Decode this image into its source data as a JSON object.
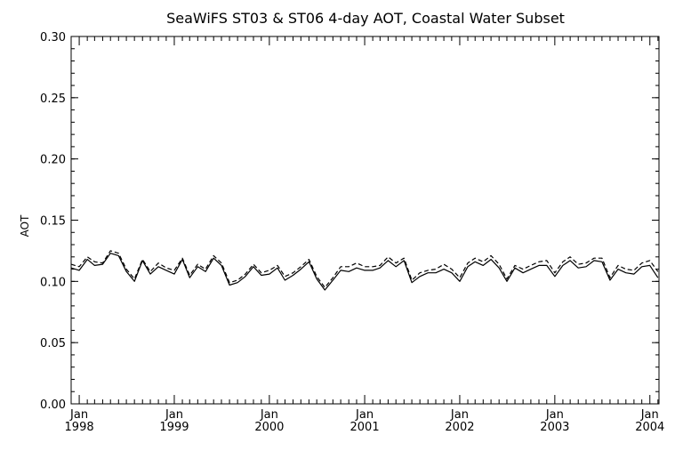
{
  "chart_data": {
    "type": "line",
    "title": "SeaWiFS ST03 & ST06 4-day AOT, Coastal Water Subset",
    "xlabel": "",
    "ylabel": "AOT",
    "ylim": [
      0.0,
      0.3
    ],
    "xlim": [
      "1997-12-01",
      "2004-02-05"
    ],
    "y_ticks": [
      "0.00",
      "0.05",
      "0.10",
      "0.15",
      "0.20",
      "0.25",
      "0.30"
    ],
    "x_ticks": [
      {
        "month": "Jan",
        "year": "1998"
      },
      {
        "month": "Jan",
        "year": "1999"
      },
      {
        "month": "Jan",
        "year": "2000"
      },
      {
        "month": "Jan",
        "year": "2001"
      },
      {
        "month": "Jan",
        "year": "2002"
      },
      {
        "month": "Jan",
        "year": "2003"
      },
      {
        "month": "Jan",
        "year": "2004"
      }
    ],
    "grid": false,
    "legend": "none",
    "series": [
      {
        "style": "solid",
        "color": "#000000",
        "x": [
          "1997-12-01",
          "1998-01-01",
          "1998-02-01",
          "1998-03-01",
          "1998-04-01",
          "1998-05-01",
          "1998-06-01",
          "1998-07-01",
          "1998-08-01",
          "1998-09-01",
          "1998-10-01",
          "1998-11-01",
          "1998-12-01",
          "1999-01-01",
          "1999-02-01",
          "1999-03-01",
          "1999-04-01",
          "1999-05-01",
          "1999-06-01",
          "1999-07-01",
          "1999-08-01",
          "1999-09-01",
          "1999-10-01",
          "1999-11-01",
          "1999-12-01",
          "2000-01-01",
          "2000-02-01",
          "2000-03-01",
          "2000-04-01",
          "2000-05-01",
          "2000-06-01",
          "2000-07-01",
          "2000-08-01",
          "2000-09-01",
          "2000-10-01",
          "2000-11-01",
          "2000-12-01",
          "2001-01-01",
          "2001-02-01",
          "2001-03-01",
          "2001-04-01",
          "2001-05-01",
          "2001-06-01",
          "2001-07-01",
          "2001-08-01",
          "2001-09-01",
          "2001-10-01",
          "2001-11-01",
          "2001-12-01",
          "2002-01-01",
          "2002-02-01",
          "2002-03-01",
          "2002-04-01",
          "2002-05-01",
          "2002-06-01",
          "2002-07-01",
          "2002-08-01",
          "2002-09-01",
          "2002-10-01",
          "2002-11-01",
          "2002-12-01",
          "2003-01-01",
          "2003-02-01",
          "2003-03-01",
          "2003-04-01",
          "2003-05-01",
          "2003-06-01",
          "2003-07-01",
          "2003-08-01",
          "2003-09-01",
          "2003-10-01",
          "2003-11-01",
          "2003-12-01",
          "2004-01-01",
          "2004-02-01"
        ],
        "values": [
          0.111,
          0.109,
          0.118,
          0.113,
          0.114,
          0.123,
          0.121,
          0.108,
          0.1,
          0.117,
          0.106,
          0.112,
          0.109,
          0.106,
          0.118,
          0.103,
          0.112,
          0.108,
          0.119,
          0.113,
          0.097,
          0.099,
          0.104,
          0.112,
          0.105,
          0.106,
          0.111,
          0.101,
          0.105,
          0.11,
          0.116,
          0.102,
          0.093,
          0.101,
          0.109,
          0.108,
          0.111,
          0.109,
          0.109,
          0.111,
          0.117,
          0.112,
          0.117,
          0.099,
          0.104,
          0.107,
          0.107,
          0.11,
          0.107,
          0.1,
          0.112,
          0.116,
          0.113,
          0.118,
          0.111,
          0.1,
          0.111,
          0.107,
          0.11,
          0.113,
          0.113,
          0.104,
          0.113,
          0.117,
          0.111,
          0.112,
          0.117,
          0.116,
          0.101,
          0.11,
          0.107,
          0.106,
          0.112,
          0.113,
          0.103
        ]
      },
      {
        "style": "dashed",
        "color": "#000000",
        "x": [
          "1997-12-01",
          "1998-01-01",
          "1998-02-01",
          "1998-03-01",
          "1998-04-01",
          "1998-05-01",
          "1998-06-01",
          "1998-07-01",
          "1998-08-01",
          "1998-09-01",
          "1998-10-01",
          "1998-11-01",
          "1998-12-01",
          "1999-01-01",
          "1999-02-01",
          "1999-03-01",
          "1999-04-01",
          "1999-05-01",
          "1999-06-01",
          "1999-07-01",
          "1999-08-01",
          "1999-09-01",
          "1999-10-01",
          "1999-11-01",
          "1999-12-01",
          "2000-01-01",
          "2000-02-01",
          "2000-03-01",
          "2000-04-01",
          "2000-05-01",
          "2000-06-01",
          "2000-07-01",
          "2000-08-01",
          "2000-09-01",
          "2000-10-01",
          "2000-11-01",
          "2000-12-01",
          "2001-01-01",
          "2001-02-01",
          "2001-03-01",
          "2001-04-01",
          "2001-05-01",
          "2001-06-01",
          "2001-07-01",
          "2001-08-01",
          "2001-09-01",
          "2001-10-01",
          "2001-11-01",
          "2001-12-01",
          "2002-01-01",
          "2002-02-01",
          "2002-03-01",
          "2002-04-01",
          "2002-05-01",
          "2002-06-01",
          "2002-07-01",
          "2002-08-01",
          "2002-09-01",
          "2002-10-01",
          "2002-11-01",
          "2002-12-01",
          "2003-01-01",
          "2003-02-01",
          "2003-03-01",
          "2003-04-01",
          "2003-05-01",
          "2003-06-01",
          "2003-07-01",
          "2003-08-01",
          "2003-09-01",
          "2003-10-01",
          "2003-11-01",
          "2003-12-01",
          "2004-01-01",
          "2004-02-01"
        ],
        "values": [
          0.114,
          0.112,
          0.12,
          0.116,
          0.115,
          0.125,
          0.123,
          0.11,
          0.102,
          0.118,
          0.108,
          0.115,
          0.111,
          0.109,
          0.119,
          0.105,
          0.114,
          0.11,
          0.121,
          0.115,
          0.099,
          0.101,
          0.106,
          0.114,
          0.107,
          0.109,
          0.113,
          0.104,
          0.107,
          0.112,
          0.118,
          0.104,
          0.095,
          0.103,
          0.112,
          0.112,
          0.115,
          0.112,
          0.112,
          0.113,
          0.12,
          0.115,
          0.119,
          0.101,
          0.107,
          0.109,
          0.11,
          0.114,
          0.11,
          0.103,
          0.115,
          0.119,
          0.116,
          0.121,
          0.114,
          0.102,
          0.113,
          0.11,
          0.113,
          0.116,
          0.117,
          0.107,
          0.116,
          0.12,
          0.114,
          0.115,
          0.119,
          0.119,
          0.103,
          0.113,
          0.11,
          0.109,
          0.115,
          0.117,
          0.108
        ]
      }
    ]
  }
}
